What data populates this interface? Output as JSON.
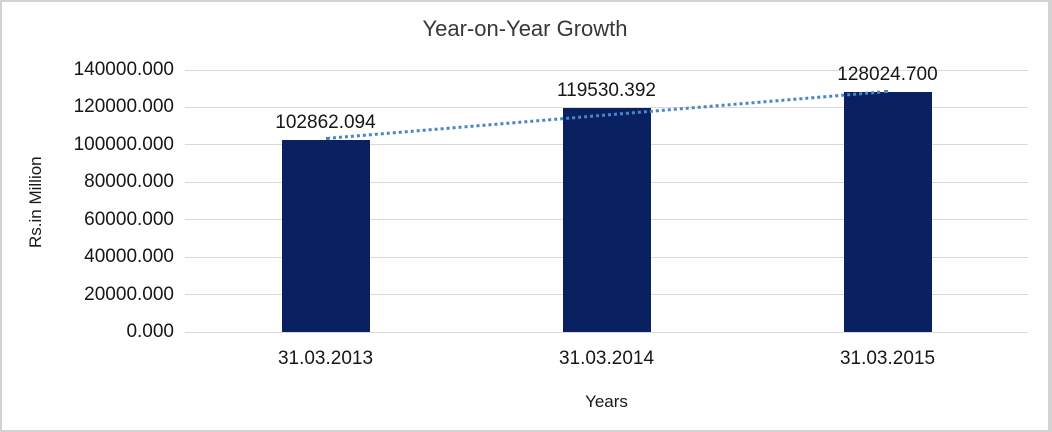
{
  "chart_data": {
    "type": "bar",
    "title": "Year-on-Year Growth",
    "categories": [
      "31.03.2013",
      "31.03.2014",
      "31.03.2015"
    ],
    "series": [
      {
        "name": "Rs.in Million",
        "values": [
          102862.094,
          119530.392,
          128024.7
        ]
      }
    ],
    "data_labels": [
      "102862.094",
      "119530.392",
      "128024.700"
    ],
    "xlabel": "Years",
    "ylabel": "Rs.in Million",
    "ylim": [
      0,
      140000
    ],
    "ytick_step": 20000,
    "ytick_labels": [
      "0.000",
      "20000.000",
      "40000.000",
      "60000.000",
      "80000.000",
      "100000.000",
      "120000.000",
      "140000.000"
    ],
    "grid": true,
    "legend": "none",
    "trendline": {
      "type": "linear",
      "style": "dotted",
      "color": "#4a85c8"
    },
    "colors": {
      "bar": "#0a2161",
      "trendline": "#4a85c8",
      "gridline": "#d9d9d9",
      "text": "#171717",
      "frame": "#d3d3d3",
      "background": "#ffffff"
    }
  }
}
